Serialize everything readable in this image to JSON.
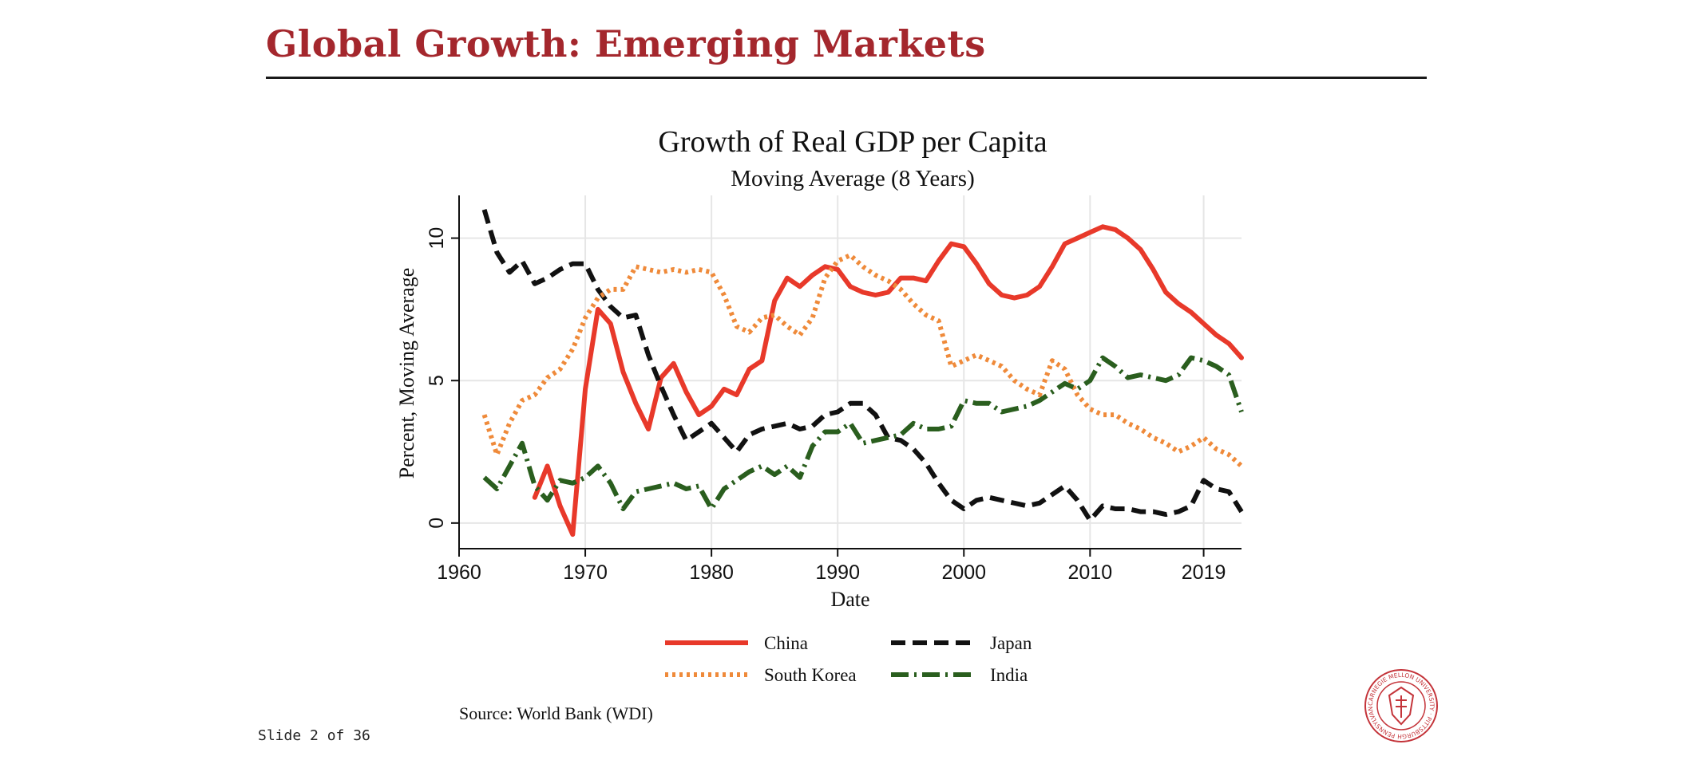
{
  "slide": {
    "title": "Global Growth: Emerging Markets",
    "source": "Source: World Bank (WDI)",
    "slide_number": "Slide 2 of 36",
    "title_color": "#a4272d",
    "seal_text": "CARNEGIE MELLON UNIVERSITY · PITTSBURGH PENNSYLVANIA 1900"
  },
  "chart_data": {
    "type": "line",
    "title": "Growth of  Real GDP per Capita",
    "subtitle": "Moving Average (8 Years)",
    "xlabel": "Date",
    "ylabel": "Percent, Moving Average",
    "xlim": [
      1960,
      2022
    ],
    "ylim": [
      0,
      11
    ],
    "xticks": [
      1960,
      1970,
      1980,
      1990,
      2000,
      2010,
      2019
    ],
    "yticks": [
      0,
      5,
      10
    ],
    "grid": true,
    "legend_position": "bottom",
    "series": [
      {
        "name": "China",
        "color": "#e8392a",
        "dash": "solid",
        "x": [
          1966,
          1967,
          1968,
          1969,
          1970,
          1971,
          1972,
          1973,
          1974,
          1975,
          1976,
          1977,
          1978,
          1979,
          1980,
          1981,
          1982,
          1983,
          1984,
          1985,
          1986,
          1987,
          1988,
          1989,
          1990,
          1991,
          1992,
          1993,
          1994,
          1995,
          1996,
          1997,
          1998,
          1999,
          2000,
          2001,
          2002,
          2003,
          2004,
          2005,
          2006,
          2007,
          2008,
          2009,
          2010,
          2011,
          2012,
          2013,
          2014,
          2015,
          2016,
          2017,
          2018,
          2019,
          2020,
          2021,
          2022
        ],
        "y": [
          0.9,
          2.0,
          0.6,
          -0.4,
          4.7,
          7.5,
          7.0,
          5.3,
          4.2,
          3.3,
          5.1,
          5.6,
          4.6,
          3.8,
          4.1,
          4.7,
          4.5,
          5.4,
          5.7,
          7.8,
          8.6,
          8.3,
          8.7,
          9.0,
          8.9,
          8.3,
          8.1,
          8.0,
          8.1,
          8.6,
          8.6,
          8.5,
          9.2,
          9.8,
          9.7,
          9.1,
          8.4,
          8.0,
          7.9,
          8.0,
          8.3,
          9.0,
          9.8,
          10.0,
          10.2,
          10.4,
          10.3,
          10.0,
          9.6,
          8.9,
          8.1,
          7.7,
          7.4,
          7.0,
          6.6,
          6.3,
          5.8
        ]
      },
      {
        "name": "Japan",
        "color": "#111111",
        "dash": "dash",
        "x": [
          1962,
          1963,
          1964,
          1965,
          1966,
          1967,
          1968,
          1969,
          1970,
          1971,
          1972,
          1973,
          1974,
          1975,
          1976,
          1977,
          1978,
          1979,
          1980,
          1981,
          1982,
          1983,
          1984,
          1985,
          1986,
          1987,
          1988,
          1989,
          1990,
          1991,
          1992,
          1993,
          1994,
          1995,
          1996,
          1997,
          1998,
          1999,
          2000,
          2001,
          2002,
          2003,
          2004,
          2005,
          2006,
          2007,
          2008,
          2009,
          2010,
          2011,
          2012,
          2013,
          2014,
          2015,
          2016,
          2017,
          2018,
          2019,
          2020,
          2021,
          2022
        ],
        "y": [
          11.0,
          9.5,
          8.8,
          9.2,
          8.4,
          8.6,
          8.9,
          9.1,
          9.1,
          8.2,
          7.6,
          7.2,
          7.3,
          5.9,
          4.8,
          3.8,
          2.9,
          3.2,
          3.5,
          3.0,
          2.5,
          3.1,
          3.3,
          3.4,
          3.5,
          3.3,
          3.4,
          3.8,
          3.9,
          4.2,
          4.2,
          3.8,
          3.0,
          2.9,
          2.6,
          2.1,
          1.4,
          0.8,
          0.5,
          0.8,
          0.9,
          0.8,
          0.7,
          0.6,
          0.7,
          1.0,
          1.3,
          0.8,
          0.1,
          0.6,
          0.5,
          0.5,
          0.4,
          0.4,
          0.3,
          0.4,
          0.6,
          1.5,
          1.2,
          1.1,
          0.4
        ]
      },
      {
        "name": "South Korea",
        "color": "#ef8a3a",
        "dash": "dot",
        "x": [
          1962,
          1963,
          1964,
          1965,
          1966,
          1967,
          1968,
          1969,
          1970,
          1971,
          1972,
          1973,
          1974,
          1975,
          1976,
          1977,
          1978,
          1979,
          1980,
          1981,
          1982,
          1983,
          1984,
          1985,
          1986,
          1987,
          1988,
          1989,
          1990,
          1991,
          1992,
          1993,
          1994,
          1995,
          1996,
          1997,
          1998,
          1999,
          2000,
          2001,
          2002,
          2003,
          2004,
          2005,
          2006,
          2007,
          2008,
          2009,
          2010,
          2011,
          2012,
          2013,
          2014,
          2015,
          2016,
          2017,
          2018,
          2019,
          2020,
          2021,
          2022
        ],
        "y": [
          3.8,
          2.4,
          3.5,
          4.3,
          4.5,
          5.1,
          5.4,
          6.1,
          7.2,
          7.9,
          8.2,
          8.2,
          9.0,
          8.9,
          8.8,
          8.9,
          8.8,
          8.9,
          8.8,
          8.0,
          6.9,
          6.7,
          7.2,
          7.3,
          6.9,
          6.6,
          7.2,
          8.6,
          9.2,
          9.4,
          9.0,
          8.7,
          8.5,
          8.2,
          7.7,
          7.3,
          7.1,
          5.5,
          5.7,
          5.9,
          5.7,
          5.5,
          5.0,
          4.7,
          4.5,
          5.7,
          5.4,
          4.5,
          4.0,
          3.8,
          3.8,
          3.5,
          3.3,
          3.0,
          2.8,
          2.5,
          2.7,
          3.0,
          2.6,
          2.4,
          2.0
        ]
      },
      {
        "name": "India",
        "color": "#2a5e1e",
        "dash": "dashdot",
        "x": [
          1962,
          1963,
          1964,
          1965,
          1966,
          1967,
          1968,
          1969,
          1970,
          1971,
          1972,
          1973,
          1974,
          1975,
          1976,
          1977,
          1978,
          1979,
          1980,
          1981,
          1982,
          1983,
          1984,
          1985,
          1986,
          1987,
          1988,
          1989,
          1990,
          1991,
          1992,
          1993,
          1994,
          1995,
          1996,
          1997,
          1998,
          1999,
          2000,
          2001,
          2002,
          2003,
          2004,
          2005,
          2006,
          2007,
          2008,
          2009,
          2010,
          2011,
          2012,
          2013,
          2014,
          2015,
          2016,
          2017,
          2018,
          2019,
          2020,
          2021,
          2022
        ],
        "y": [
          1.6,
          1.2,
          2.0,
          2.8,
          1.3,
          0.8,
          1.5,
          1.4,
          1.6,
          2.0,
          1.4,
          0.5,
          1.1,
          1.2,
          1.3,
          1.4,
          1.2,
          1.3,
          0.5,
          1.2,
          1.5,
          1.8,
          2.0,
          1.7,
          2.0,
          1.6,
          2.7,
          3.2,
          3.2,
          3.5,
          2.8,
          2.9,
          3.0,
          3.1,
          3.5,
          3.3,
          3.3,
          3.4,
          4.3,
          4.2,
          4.2,
          3.9,
          4.0,
          4.1,
          4.3,
          4.6,
          4.9,
          4.7,
          5.0,
          5.8,
          5.5,
          5.1,
          5.2,
          5.1,
          5.0,
          5.2,
          5.8,
          5.7,
          5.5,
          5.2,
          3.9
        ]
      }
    ]
  }
}
